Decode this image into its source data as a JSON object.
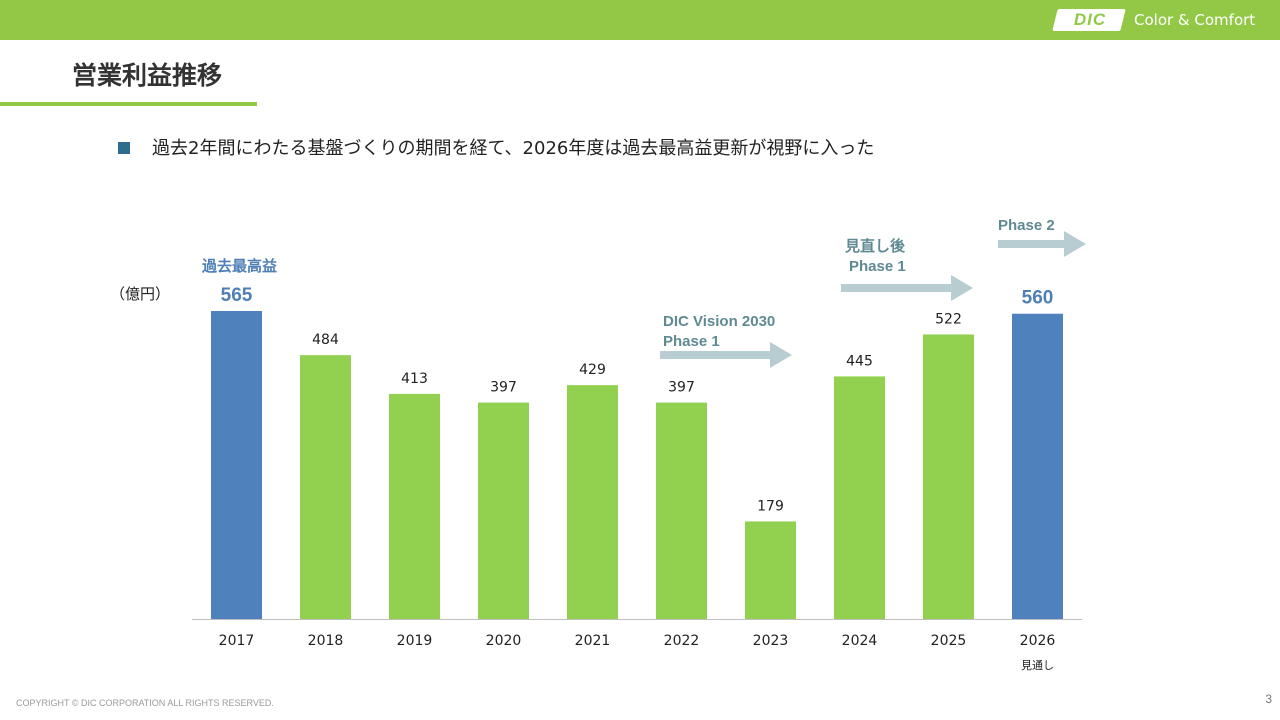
{
  "header": {
    "logo_text": "DIC",
    "tagline": "Color & Comfort",
    "accent_color": "#92c846"
  },
  "page": {
    "title": "営業利益推移",
    "bullet": "過去2年間にわたる基盤づくりの期間を経て、2026年度は過去最高益更新が視野に入った",
    "number": "3"
  },
  "footer": {
    "copyright": "COPYRIGHT © DIC CORPORATION ALL RIGHTS RESERVED."
  },
  "chart_data": {
    "type": "bar",
    "unit_label": "（億円）",
    "categories": [
      "2017",
      "2018",
      "2019",
      "2020",
      "2021",
      "2022",
      "2023",
      "2024",
      "2025",
      "2026"
    ],
    "values": [
      565,
      484,
      413,
      397,
      429,
      397,
      179,
      445,
      522,
      560
    ],
    "highlight": [
      true,
      false,
      false,
      false,
      false,
      false,
      false,
      false,
      false,
      true
    ],
    "category_notes": {
      "2026": "見通し"
    },
    "ylim": [
      0,
      565
    ],
    "colors": {
      "normal": "#92d050",
      "highlight": "#4f81bd",
      "arrow": "#b7cdd2",
      "annotation": "#4f7fb5",
      "phase_text": "#5f8a93"
    },
    "annotations": {
      "record_label": "過去最高益",
      "vision_phase1_line1": "DIC Vision 2030",
      "vision_phase1_line2": "Phase 1",
      "revised_phase1_line1": "見直し後",
      "revised_phase1_line2": "Phase 1",
      "phase2": "Phase 2"
    }
  }
}
